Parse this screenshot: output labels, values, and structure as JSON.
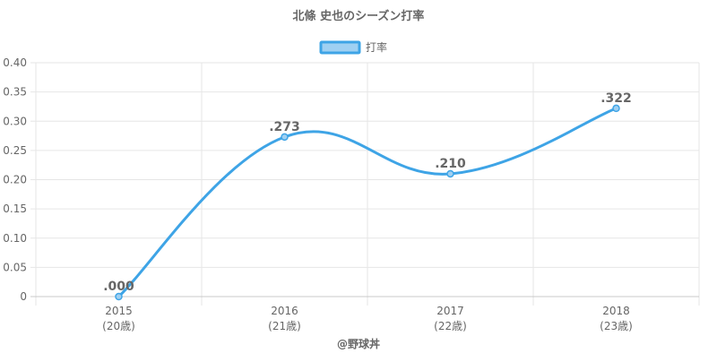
{
  "chart_data": {
    "type": "line",
    "title": "北條 史也のシーズン打率",
    "legend": {
      "label": "打率",
      "position": "top",
      "color": "#3ea4e6",
      "fill": "#9fd0f2"
    },
    "x": [
      2015,
      2016,
      2017,
      2018
    ],
    "x_labels": [
      "2015",
      "2016",
      "2017",
      "2018"
    ],
    "x_sublabels": [
      "(20歳)",
      "(21歳)",
      "(22歳)",
      "(23歳)"
    ],
    "series": [
      {
        "name": "打率",
        "values": [
          0.0,
          0.273,
          0.21,
          0.322
        ],
        "labels": [
          ".000",
          ".273",
          ".210",
          ".322"
        ]
      }
    ],
    "ylim": [
      0,
      0.4
    ],
    "y_ticks": [
      0,
      0.05,
      0.1,
      0.15,
      0.2,
      0.25,
      0.3,
      0.35,
      0.4
    ],
    "y_tick_labels": [
      "0",
      "0.05",
      "0.10",
      "0.15",
      "0.20",
      "0.25",
      "0.30",
      "0.35",
      "0.40"
    ],
    "xlabel": "",
    "ylabel": "",
    "grid": true,
    "footer": "@野球丼",
    "colors": {
      "line": "#3ea4e6",
      "grid": "#e6e6e6",
      "axis": "#c8c8c8",
      "text": "#666666",
      "title": "#666666"
    }
  }
}
